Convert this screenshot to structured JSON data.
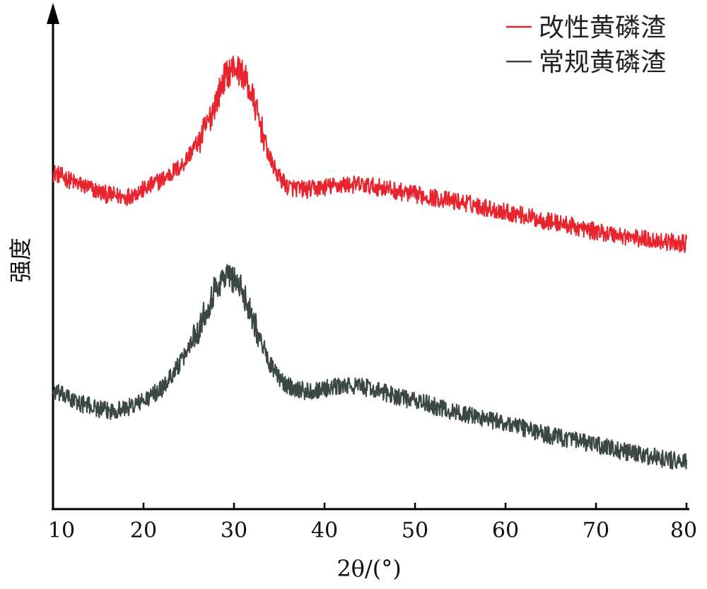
{
  "chart_data": {
    "type": "line",
    "title": "",
    "xlabel": "2θ/(°)",
    "ylabel": "强度",
    "xlim": [
      10,
      80
    ],
    "xticks": [
      "10",
      "20",
      "30",
      "40",
      "50",
      "60",
      "70",
      "80"
    ],
    "y_axis_ticks": false,
    "grid": false,
    "legend": "top-right",
    "series": [
      {
        "name": "改性黄磷渣",
        "color": "#e8242f",
        "x": [
          10,
          13,
          16,
          18,
          20,
          22,
          24,
          26,
          27,
          28,
          29,
          30,
          31,
          32,
          33,
          34,
          35,
          36,
          38,
          40,
          42,
          44,
          46,
          50,
          55,
          60,
          65,
          70,
          75,
          80
        ],
        "y": [
          6.85,
          6.6,
          6.4,
          6.35,
          6.5,
          6.7,
          6.95,
          7.45,
          7.8,
          8.3,
          8.8,
          9.0,
          8.85,
          8.4,
          7.75,
          7.1,
          6.75,
          6.55,
          6.5,
          6.55,
          6.6,
          6.6,
          6.55,
          6.4,
          6.25,
          6.05,
          5.85,
          5.65,
          5.5,
          5.4
        ]
      },
      {
        "name": "常规黄磷渣",
        "color": "#3a4744",
        "x": [
          10,
          13,
          16,
          18,
          20,
          22,
          24,
          26,
          27,
          28,
          29,
          30,
          31,
          32,
          33,
          34,
          35,
          36,
          38,
          40,
          42,
          44,
          46,
          50,
          55,
          60,
          65,
          70,
          75,
          80
        ],
        "y": [
          2.4,
          2.15,
          2.0,
          2.05,
          2.2,
          2.45,
          2.95,
          3.65,
          4.1,
          4.5,
          4.75,
          4.7,
          4.4,
          3.95,
          3.4,
          2.95,
          2.65,
          2.5,
          2.4,
          2.45,
          2.5,
          2.5,
          2.4,
          2.2,
          1.95,
          1.75,
          1.5,
          1.3,
          1.1,
          0.95
        ]
      }
    ]
  }
}
